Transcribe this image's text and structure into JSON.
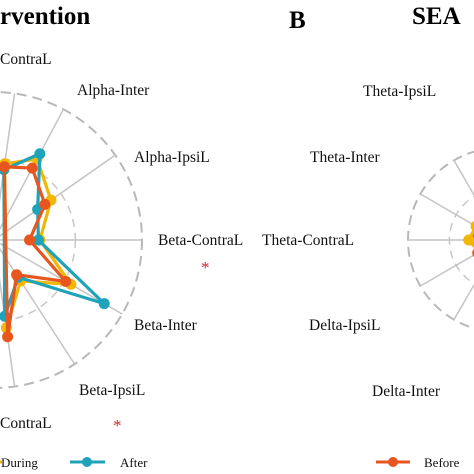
{
  "panel_a": {
    "title_fragment": "rvention"
  },
  "panel_b": {
    "letter": "B",
    "title_fragment": "SEA"
  },
  "chart_data": [
    {
      "type": "radar",
      "panel": "A",
      "title": "rvention",
      "axes": [
        "ContraL",
        "Alpha-Inter",
        "Alpha-IpsiL",
        "Beta-ContraL",
        "Beta-Inter",
        "Beta-IpsiL",
        "ContraL"
      ],
      "significant_axes": [
        "Beta-ContraL",
        "ContraL"
      ],
      "significance_marker": "*",
      "series": [
        {
          "name": "During",
          "color": "#f2b705",
          "values": [
            0.52,
            0.62,
            0.47,
            0.31,
            0.6,
            0.33,
            0.6
          ]
        },
        {
          "name": "After",
          "color": "#1fa3b8",
          "values": [
            0.48,
            0.66,
            0.36,
            0.3,
            0.86,
            0.3,
            0.52
          ]
        },
        {
          "name": "",
          "color": "#e8561f",
          "values": [
            0.5,
            0.55,
            0.42,
            0.24,
            0.56,
            0.28,
            0.66
          ]
        }
      ]
    },
    {
      "type": "radar",
      "panel": "B",
      "title": "SEA",
      "axes": [
        "Theta-IpsiL",
        "Theta-Inter",
        "Theta-ContraL",
        "Delta-IpsiL",
        "Delta-Inter"
      ],
      "series": [
        {
          "name": "Before",
          "color": "#e8561f",
          "values": [
            0.32,
            0.28,
            0.3,
            0.28,
            0.3
          ]
        },
        {
          "name": "",
          "color": "#f2b705",
          "values": [
            0.3,
            0.3,
            0.34,
            0.26,
            0.28
          ]
        }
      ]
    }
  ]
}
